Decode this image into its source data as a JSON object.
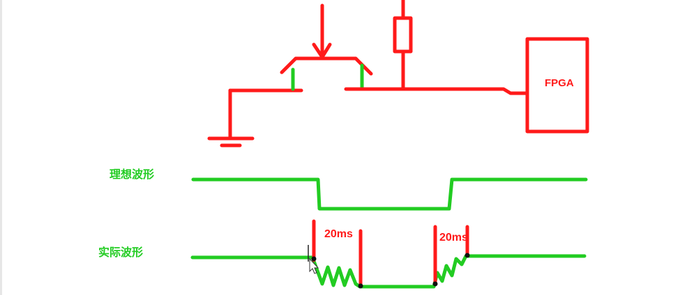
{
  "labels": {
    "ideal_waveform": "理想波形",
    "actual_waveform": "实际波形",
    "fpga": "FPGA",
    "bounce_time_1": "20ms",
    "bounce_time_2": "20ms"
  },
  "colors": {
    "circuit": "#ff1a1a",
    "waveform": "#22cc22",
    "background": "#ffffff"
  }
}
